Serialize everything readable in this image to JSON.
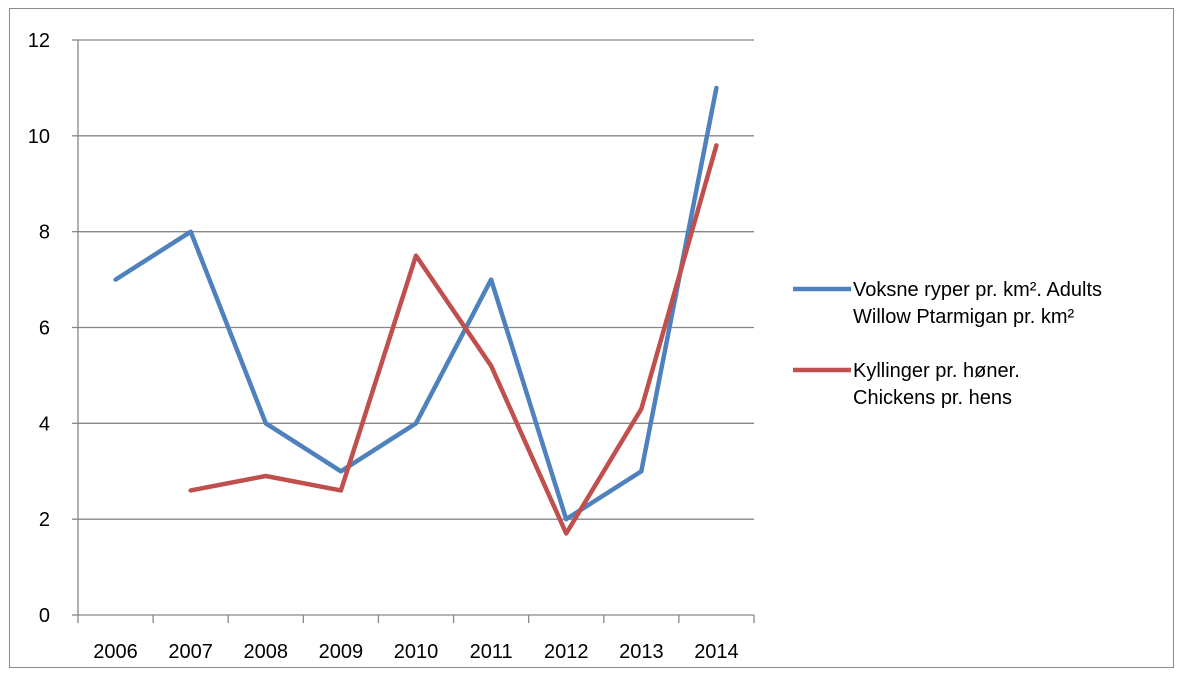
{
  "chart_data": {
    "type": "line",
    "categories": [
      "2006",
      "2007",
      "2008",
      "2009",
      "2010",
      "2011",
      "2012",
      "2013",
      "2014"
    ],
    "series": [
      {
        "name_lines": [
          "Voksne ryper pr. km². Adults",
          "Willow Ptarmigan pr. km²"
        ],
        "color": "#4f81bd",
        "values": [
          7,
          8,
          4,
          3,
          4,
          7,
          2,
          3,
          11
        ]
      },
      {
        "name_lines": [
          "Kyllinger pr. høner.",
          "Chickens pr. hens"
        ],
        "color": "#c0504d",
        "values": [
          null,
          2.6,
          2.9,
          2.6,
          7.5,
          5.2,
          1.7,
          4.3,
          9.8
        ]
      }
    ],
    "ylim": [
      0,
      12
    ],
    "yticks": [
      "0",
      "2",
      "4",
      "6",
      "8",
      "10",
      "12"
    ],
    "grid": true,
    "legend": "right"
  }
}
